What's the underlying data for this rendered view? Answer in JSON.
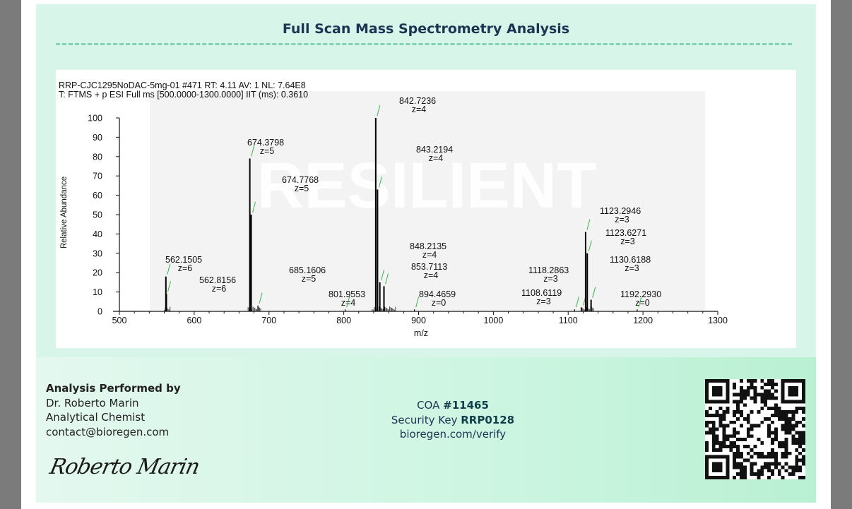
{
  "report": {
    "title": "Full Scan Mass Spectrometry Analysis"
  },
  "spectrum": {
    "header_line1": "RRP-CJC1295NoDAC-5mg-01 #471 RT: 4.11 AV: 1 NL: 7.64E8",
    "header_line2": "T: FTMS + p ESI Full ms [500.0000-1300.0000] IIT (ms): 0.3610",
    "watermark": "RESILIENT",
    "ylabel": "Relative Abundance",
    "xlabel": "m/z"
  },
  "chart_data": {
    "type": "line",
    "xlabel": "m/z",
    "ylabel": "Relative Abundance",
    "xlim": [
      500,
      1300
    ],
    "ylim": [
      0,
      100
    ],
    "x_ticks": [
      500,
      600,
      700,
      800,
      900,
      1000,
      1100,
      1200,
      1300
    ],
    "y_ticks": [
      0,
      10,
      20,
      30,
      40,
      50,
      60,
      70,
      80,
      90,
      100
    ],
    "peaks": [
      {
        "mz": 562.1505,
        "intensity": 18,
        "label": "562.1505",
        "charge": "z=6"
      },
      {
        "mz": 562.8156,
        "intensity": 9,
        "label": "562.8156",
        "charge": "z=6"
      },
      {
        "mz": 674.3798,
        "intensity": 79,
        "label": "674.3798",
        "charge": "z=5"
      },
      {
        "mz": 674.7768,
        "intensity": 50,
        "label": "674.7768",
        "charge": "z=5"
      },
      {
        "mz": 685.1606,
        "intensity": 3,
        "label": "685.1606",
        "charge": "z=5"
      },
      {
        "mz": 801.9553,
        "intensity": 1,
        "label": "801.9553",
        "charge": "z=4"
      },
      {
        "mz": 842.7236,
        "intensity": 100,
        "label": "842.7236",
        "charge": "z=4"
      },
      {
        "mz": 843.2194,
        "intensity": 63,
        "label": "843.2194",
        "charge": "z=4"
      },
      {
        "mz": 848.2135,
        "intensity": 15,
        "label": "848.2135",
        "charge": "z=4"
      },
      {
        "mz": 853.7113,
        "intensity": 13,
        "label": "853.7113",
        "charge": "z=4"
      },
      {
        "mz": 894.4659,
        "intensity": 1,
        "label": "894.4659",
        "charge": "z=0"
      },
      {
        "mz": 1108.6119,
        "intensity": 1,
        "label": "1108.6119",
        "charge": "z=3"
      },
      {
        "mz": 1118.2863,
        "intensity": 2,
        "label": "1118.2863",
        "charge": "z=3"
      },
      {
        "mz": 1123.2946,
        "intensity": 41,
        "label": "1123.2946",
        "charge": "z=3"
      },
      {
        "mz": 1123.6271,
        "intensity": 30,
        "label": "1123.6271",
        "charge": "z=3"
      },
      {
        "mz": 1130.6188,
        "intensity": 6,
        "label": "1130.6188",
        "charge": "z=3"
      },
      {
        "mz": 1192.293,
        "intensity": 1,
        "label": "1192.2930",
        "charge": "z=0"
      }
    ]
  },
  "footer": {
    "performed_by_heading": "Analysis Performed by",
    "analyst_name": "Dr. Roberto Marin",
    "analyst_role": "Analytical Chemist",
    "analyst_email": "contact@bioregen.com",
    "signature": "Roberto Marin",
    "coa_label": "COA",
    "coa_number": "#11465",
    "security_label": "Security Key",
    "security_key": "RRP0128",
    "verify_url": "bioregen.com/verify"
  }
}
